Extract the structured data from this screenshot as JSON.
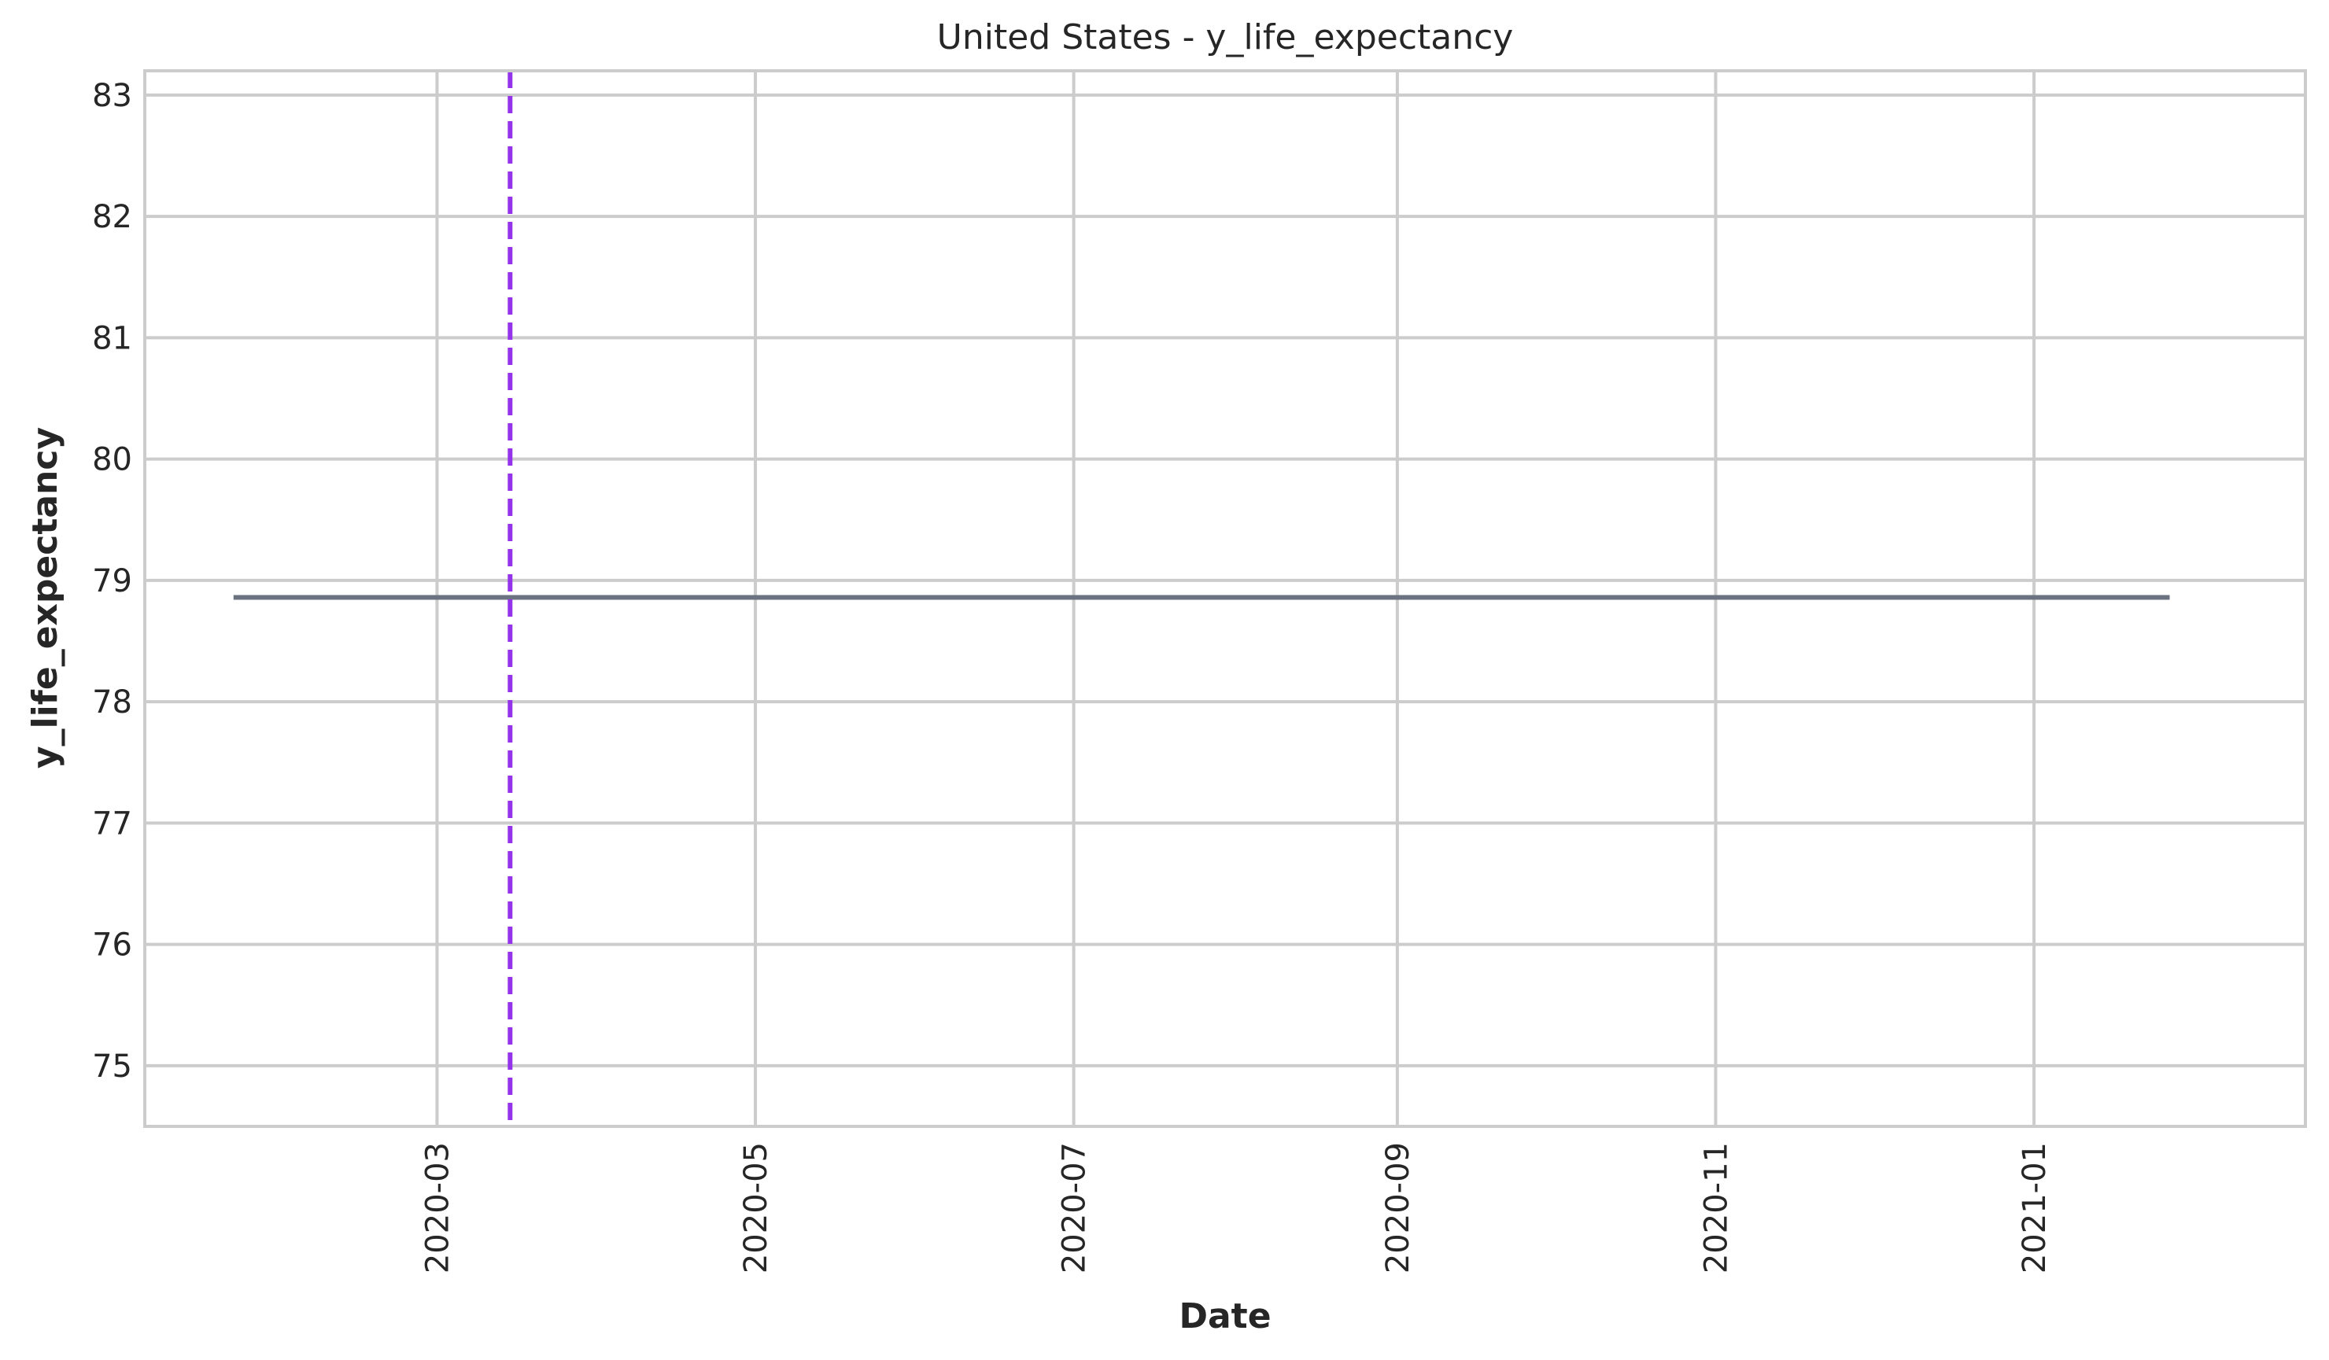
{
  "chart_data": {
    "type": "line",
    "title": "United States - y_life_expectancy",
    "xlabel": "Date",
    "ylabel": "y_life_expectancy",
    "x_axis_type": "date",
    "xlim": [
      "2020-01-05",
      "2021-02-22"
    ],
    "ylim": [
      74.5,
      83.2
    ],
    "grid": true,
    "legend": "none",
    "x_ticks": [
      {
        "value": "2020-03-01",
        "label": "2020-03"
      },
      {
        "value": "2020-05-01",
        "label": "2020-05"
      },
      {
        "value": "2020-07-01",
        "label": "2020-07"
      },
      {
        "value": "2020-09-01",
        "label": "2020-09"
      },
      {
        "value": "2020-11-01",
        "label": "2020-11"
      },
      {
        "value": "2021-01-01",
        "label": "2021-01"
      }
    ],
    "y_ticks": [
      75,
      76,
      77,
      78,
      79,
      80,
      81,
      82,
      83
    ],
    "series": [
      {
        "color": "#6b7280",
        "x": [
          "2020-01-22",
          "2021-01-27"
        ],
        "y": [
          78.86,
          78.86
        ]
      }
    ],
    "vlines": [
      {
        "x": "2020-03-15",
        "color": "#9333ea",
        "style": "dashed"
      }
    ]
  }
}
